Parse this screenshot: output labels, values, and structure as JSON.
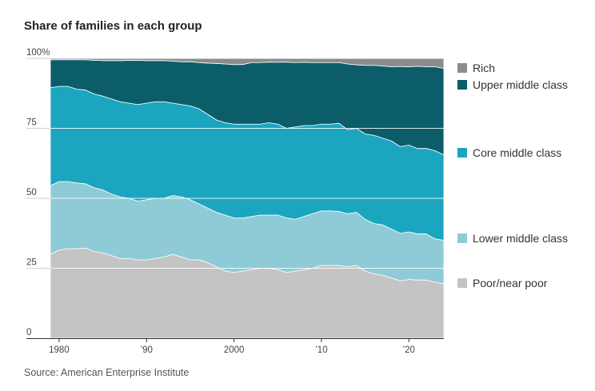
{
  "title": "Share of families in each group",
  "source": "Source: American Enterprise Institute",
  "chart_data": {
    "type": "area",
    "stacked": true,
    "title": "Share of families in each group",
    "ylim": [
      0,
      100
    ],
    "xlim": [
      1979,
      2024
    ],
    "y_ticks": [
      0,
      25,
      50,
      75,
      100
    ],
    "y_tick_labels": [
      "0",
      "25",
      "50",
      "75",
      "100%"
    ],
    "x_ticks": [
      1980,
      1990,
      2000,
      2010,
      2020
    ],
    "x_tick_labels": [
      "1980",
      "’90",
      "2000",
      "’10",
      "’20"
    ],
    "grid": true,
    "legend_position": "right",
    "x": [
      1979,
      1980,
      1981,
      1982,
      1983,
      1984,
      1985,
      1986,
      1987,
      1988,
      1989,
      1990,
      1991,
      1992,
      1993,
      1994,
      1995,
      1996,
      1997,
      1998,
      1999,
      2000,
      2001,
      2002,
      2003,
      2004,
      2005,
      2006,
      2007,
      2008,
      2009,
      2010,
      2011,
      2012,
      2013,
      2014,
      2015,
      2016,
      2017,
      2018,
      2019,
      2020,
      2021,
      2022,
      2023,
      2024
    ],
    "series": [
      {
        "name": "Poor/near poor",
        "color": "#c4c4c4",
        "values": [
          30,
          31.5,
          32,
          32,
          32.2,
          31,
          30.5,
          29.5,
          28.5,
          28.5,
          28,
          28,
          28.5,
          29,
          30,
          29,
          28,
          28,
          27,
          25.5,
          24,
          23.5,
          24,
          24.5,
          25,
          25,
          24.5,
          23.5,
          24,
          24.5,
          25,
          26,
          26,
          26,
          25.5,
          26,
          24,
          23,
          22.5,
          21.5,
          20.5,
          21,
          20.8,
          20.8,
          20,
          19.5
        ]
      },
      {
        "name": "Lower middle class",
        "color": "#8ecbd7",
        "values": [
          24.5,
          24.5,
          24,
          23.5,
          23,
          22.8,
          22.5,
          22,
          22,
          21.5,
          21,
          21.5,
          21.5,
          21,
          21,
          21.5,
          21.5,
          20,
          19.5,
          19.5,
          20,
          19.5,
          19,
          19,
          19,
          19,
          19.5,
          19.5,
          18.5,
          19,
          19.5,
          19.5,
          19.5,
          19.3,
          19,
          19,
          18.5,
          18,
          18,
          17.5,
          17,
          17,
          16.5,
          16.5,
          15.5,
          15.5
        ]
      },
      {
        "name": "Core middle class",
        "color": "#1ca5bf",
        "values": [
          35,
          34,
          34,
          33.5,
          33.5,
          33.5,
          33.5,
          34,
          34,
          34,
          34.5,
          34.5,
          34.5,
          34.5,
          33,
          33,
          33.5,
          34,
          33.5,
          33,
          33,
          33.5,
          33.5,
          33,
          32.5,
          33,
          32.5,
          32,
          33,
          32.5,
          31.5,
          31,
          31,
          31.5,
          30,
          30,
          30.5,
          31.5,
          31,
          31.5,
          31,
          31,
          30.5,
          30.5,
          31.5,
          30.5
        ]
      },
      {
        "name": "Upper middle class",
        "color": "#0b5d6a",
        "values": [
          10,
          9.5,
          9.5,
          10.5,
          10.8,
          12,
          12.7,
          13.7,
          14.7,
          15.3,
          15.8,
          15.2,
          14.7,
          14.7,
          15,
          15.3,
          15.8,
          16.5,
          18.3,
          20.2,
          21,
          21.3,
          21.3,
          22,
          22,
          21.7,
          22.1,
          23.7,
          23,
          22.6,
          22.5,
          22,
          22,
          21.7,
          23.5,
          22.7,
          24.5,
          25,
          25.8,
          26.5,
          28.6,
          28,
          29.4,
          29.2,
          30,
          30.9
        ]
      },
      {
        "name": "Rich",
        "color": "#8c8c8c",
        "values": [
          0.5,
          0.5,
          0.5,
          0.5,
          0.5,
          0.7,
          0.8,
          0.8,
          0.8,
          0.7,
          0.7,
          0.8,
          0.8,
          0.8,
          1,
          1.2,
          1.2,
          1.5,
          1.7,
          1.8,
          2,
          2.2,
          2.2,
          1.5,
          1.5,
          1.3,
          1.4,
          1.3,
          1.5,
          1.4,
          1.5,
          1.5,
          1.5,
          1.5,
          2,
          2.3,
          2.5,
          2.5,
          2.7,
          3,
          2.9,
          3,
          2.8,
          3,
          3,
          3.6
        ]
      }
    ]
  },
  "legend": [
    {
      "label": "Rich",
      "color": "#8c8c8c"
    },
    {
      "label": "Upper middle class",
      "color": "#0b5d6a"
    },
    {
      "label": "Core middle class",
      "color": "#1ca5bf"
    },
    {
      "label": "Lower middle class",
      "color": "#8ecbd7"
    },
    {
      "label": "Poor/near poor",
      "color": "#c4c4c4"
    }
  ]
}
